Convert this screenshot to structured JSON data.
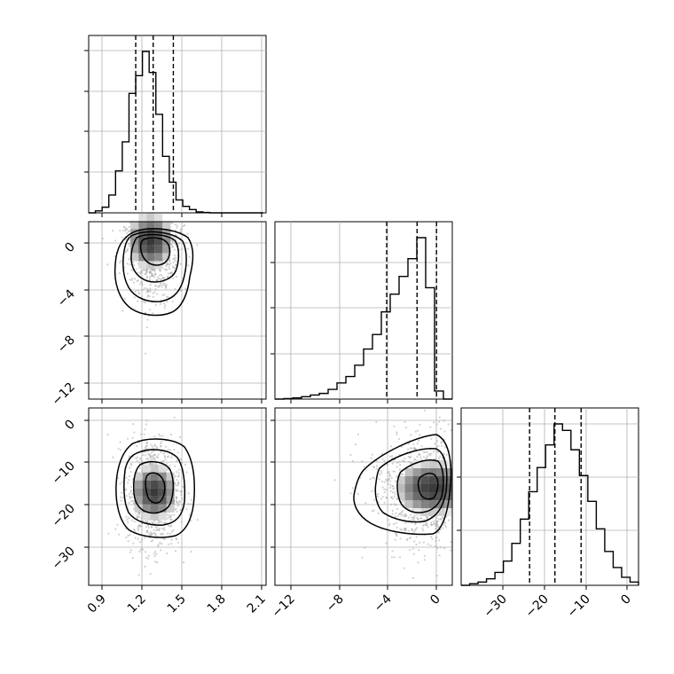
{
  "chart_data": [
    {
      "type": "histogram",
      "panel": "p1-marginal",
      "xticks": [
        "0.9",
        "1.2",
        "1.5",
        "1.8",
        "2.1"
      ],
      "xlim": [
        0.84,
        2.16
      ],
      "bins": {
        "start": 0.84,
        "width": 0.05,
        "counts": [
          0,
          1.2,
          3.5,
          11,
          26,
          44,
          74,
          85,
          100,
          87,
          61,
          35,
          19,
          8,
          4,
          2,
          0.6,
          0.2,
          0,
          0,
          0,
          0,
          0,
          0,
          0,
          0
        ]
      },
      "quantiles": [
        1.19,
        1.32,
        1.47
      ]
    },
    {
      "type": "scatter-contour",
      "panel": "p1-vs-p2",
      "xticks": [],
      "yticks": [
        "0",
        "−4",
        "−8",
        "−12"
      ],
      "xlim": [
        0.84,
        2.16
      ],
      "ylim": [
        -13.3,
        1.3
      ],
      "mean": [
        1.32,
        -1.0
      ],
      "std": [
        0.1,
        2.0
      ],
      "density_peak": [
        1.3,
        -0.3
      ]
    },
    {
      "type": "histogram",
      "panel": "p2-marginal",
      "xticks": [],
      "xlim": [
        -13.3,
        1.3
      ],
      "bins": {
        "start": -13.3,
        "width": 0.73,
        "counts": [
          0,
          0.3,
          0.7,
          1.5,
          2.5,
          3.5,
          6,
          10,
          14,
          21,
          31,
          40,
          54,
          65,
          76,
          87,
          100,
          69,
          5,
          0
        ]
      },
      "quantiles": [
        -4.1,
        -1.6,
        0.0
      ]
    },
    {
      "type": "scatter-contour",
      "panel": "p1-vs-p3",
      "xticks": [
        "0.9",
        "1.2",
        "1.5",
        "1.8",
        "2.1"
      ],
      "yticks": [
        "0",
        "−10",
        "−20",
        "−30"
      ],
      "xlim": [
        0.84,
        2.16
      ],
      "ylim": [
        -39,
        3
      ],
      "mean": [
        1.32,
        -17
      ],
      "std": [
        0.1,
        6.5
      ],
      "density_peak": [
        1.33,
        -17
      ]
    },
    {
      "type": "scatter-contour",
      "panel": "p2-vs-p3",
      "xticks": [
        "−12",
        "−8",
        "−4",
        "0"
      ],
      "yticks": [],
      "xlim": [
        -13.3,
        1.3
      ],
      "ylim": [
        -39,
        3
      ],
      "mean": [
        -1.0,
        -17
      ],
      "std": [
        2.0,
        6.5
      ],
      "density_peak": [
        -0.3,
        -16
      ]
    },
    {
      "type": "histogram",
      "panel": "p3-marginal",
      "xticks": [
        "−30",
        "−20",
        "−10",
        "0"
      ],
      "xlim": [
        -39,
        3
      ],
      "bins": {
        "start": -39,
        "width": 2.0,
        "counts": [
          0,
          1,
          2,
          4,
          8,
          15,
          26,
          41,
          58,
          73,
          87,
          100,
          96,
          84,
          68,
          52,
          35,
          21,
          11,
          5,
          2,
          0
        ]
      },
      "quantiles": [
        -22.8,
        -16.8,
        -10.6
      ]
    }
  ]
}
